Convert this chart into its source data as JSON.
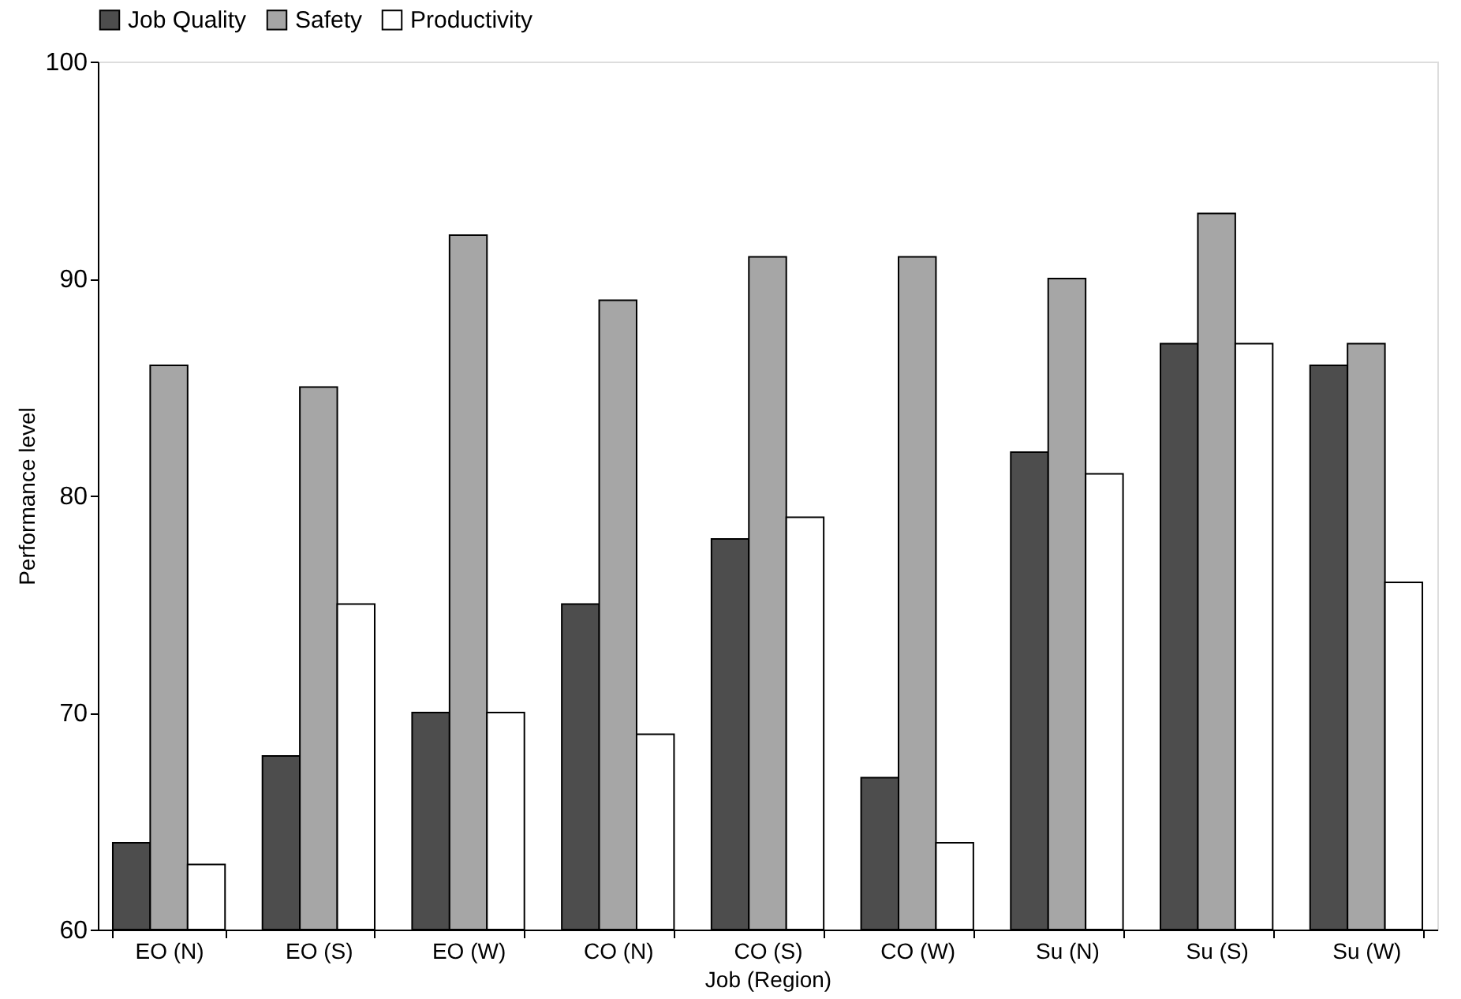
{
  "chart_data": {
    "type": "bar",
    "xlabel": "Job (Region)",
    "ylabel": "Performance level",
    "categories": [
      "EO (N)",
      "EO (S)",
      "EO (W)",
      "CO (N)",
      "CO (S)",
      "CO (W)",
      "Su (N)",
      "Su (S)",
      "Su (W)"
    ],
    "series": [
      {
        "name": "Job Quality",
        "color": "#4d4d4d",
        "values": [
          64,
          68,
          70,
          75,
          78,
          67,
          82,
          87,
          86
        ]
      },
      {
        "name": "Safety",
        "color": "#a6a6a6",
        "values": [
          86,
          85,
          92,
          89,
          91,
          91,
          90,
          93,
          87
        ]
      },
      {
        "name": "Productivity",
        "color": "#ffffff",
        "values": [
          63,
          75,
          70,
          69,
          79,
          64,
          81,
          87,
          76
        ]
      }
    ],
    "ylim": [
      60,
      100
    ],
    "yticks": [
      60,
      70,
      80,
      90,
      100
    ],
    "grid": false,
    "legend": "top"
  }
}
